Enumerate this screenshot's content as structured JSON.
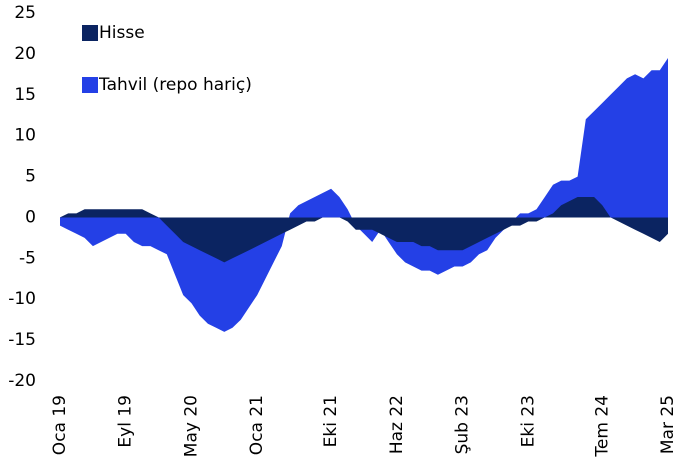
{
  "chart_data": {
    "type": "area",
    "categories": [
      "Oca 19",
      null,
      null,
      null,
      null,
      null,
      null,
      null,
      "Eyl 19",
      null,
      null,
      null,
      null,
      null,
      null,
      null,
      "May 20",
      null,
      null,
      null,
      null,
      null,
      null,
      null,
      "Oca 21",
      null,
      null,
      null,
      null,
      null,
      null,
      null,
      null,
      "Eki 21",
      null,
      null,
      null,
      null,
      null,
      null,
      null,
      "Haz 22",
      null,
      null,
      null,
      null,
      null,
      null,
      null,
      "Şub 23",
      null,
      null,
      null,
      null,
      null,
      null,
      null,
      "Eki 23",
      null,
      null,
      null,
      null,
      null,
      null,
      null,
      null,
      "Tem 24",
      null,
      null,
      null,
      null,
      null,
      null,
      null,
      "Mar 25"
    ],
    "series": [
      {
        "name": "Hisse",
        "color": "#0b2461",
        "values": [
          0,
          0.5,
          0.5,
          1,
          1,
          1,
          1,
          1,
          1,
          1,
          1,
          0.5,
          0,
          -1,
          -2,
          -3,
          -3.5,
          -4,
          -4.5,
          -5,
          -5.5,
          -5,
          -4.5,
          -4,
          -3.5,
          -3,
          -2.5,
          -2,
          -1.5,
          -1,
          -0.5,
          -0.5,
          0,
          0,
          0,
          -0.5,
          -1.5,
          -1.5,
          -1.5,
          -2,
          -2.5,
          -3,
          -3,
          -3,
          -3.5,
          -3.5,
          -4,
          -4,
          -4,
          -4,
          -3.5,
          -3,
          -2.5,
          -2,
          -1.5,
          -1,
          -1,
          -0.5,
          -0.5,
          0,
          0.5,
          1.5,
          2,
          2.5,
          2.5,
          2.5,
          1.5,
          0,
          -0.5,
          -1,
          -1.5,
          -2,
          -2.5,
          -3,
          -2
        ]
      },
      {
        "name": "Tahvil (repo hariç)",
        "color": "#2440e6",
        "values": [
          -1,
          -1.5,
          -2,
          -2.5,
          -3.5,
          -3,
          -2.5,
          -2,
          -2,
          -3,
          -3.5,
          -3.5,
          -4,
          -4.5,
          -7,
          -9.5,
          -10.5,
          -12,
          -13,
          -13.5,
          -14,
          -13.5,
          -12.5,
          -11,
          -9.5,
          -7.5,
          -5.5,
          -3.5,
          0.5,
          1.5,
          2,
          2.5,
          3,
          3.5,
          2.5,
          1,
          -1,
          -2,
          -3,
          -1.5,
          -3,
          -4.5,
          -5.5,
          -6,
          -6.5,
          -6.5,
          -7,
          -6.5,
          -6,
          -6,
          -5.5,
          -4.5,
          -4,
          -2.5,
          -1.5,
          -0.5,
          0.5,
          0.5,
          1,
          2.5,
          4,
          4.5,
          4.5,
          5,
          12,
          13,
          14,
          15,
          16,
          17,
          17.5,
          17,
          18,
          18,
          19.5
        ]
      }
    ],
    "ylim": [
      -20,
      25
    ],
    "yticks": [
      -20,
      -15,
      -10,
      -5,
      0,
      5,
      10,
      15,
      20,
      25
    ],
    "grid": false,
    "legend": "top-left"
  }
}
